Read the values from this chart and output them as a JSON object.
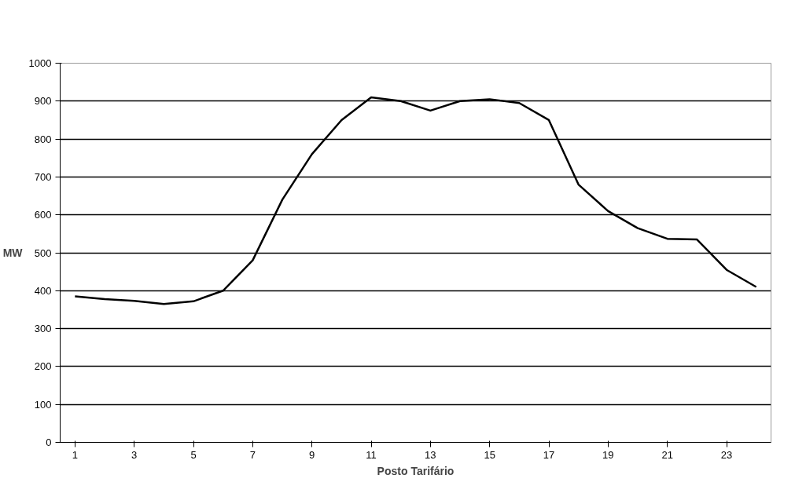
{
  "chart_data": {
    "type": "line",
    "xlabel": "Posto Tarifário",
    "ylabel": "MW",
    "x": [
      1,
      2,
      3,
      4,
      5,
      6,
      7,
      8,
      9,
      10,
      11,
      12,
      13,
      14,
      15,
      16,
      17,
      18,
      19,
      20,
      21,
      22,
      23,
      24
    ],
    "series": [
      {
        "color": "#000000",
        "values": [
          385,
          378,
          373,
          365,
          372,
          400,
          480,
          640,
          760,
          850,
          910,
          900,
          875,
          900,
          905,
          895,
          850,
          680,
          610,
          565,
          537,
          535,
          455,
          410
        ]
      }
    ],
    "xlim": [
      0.5,
      24.5
    ],
    "xticks": [
      1,
      3,
      5,
      7,
      9,
      11,
      13,
      15,
      17,
      19,
      21,
      23
    ],
    "ylim": [
      0,
      1000
    ],
    "yticks": [
      0,
      100,
      200,
      300,
      400,
      500,
      600,
      700,
      800,
      900,
      1000
    ],
    "grid": "y",
    "marker": "none",
    "line_style": "solid"
  }
}
